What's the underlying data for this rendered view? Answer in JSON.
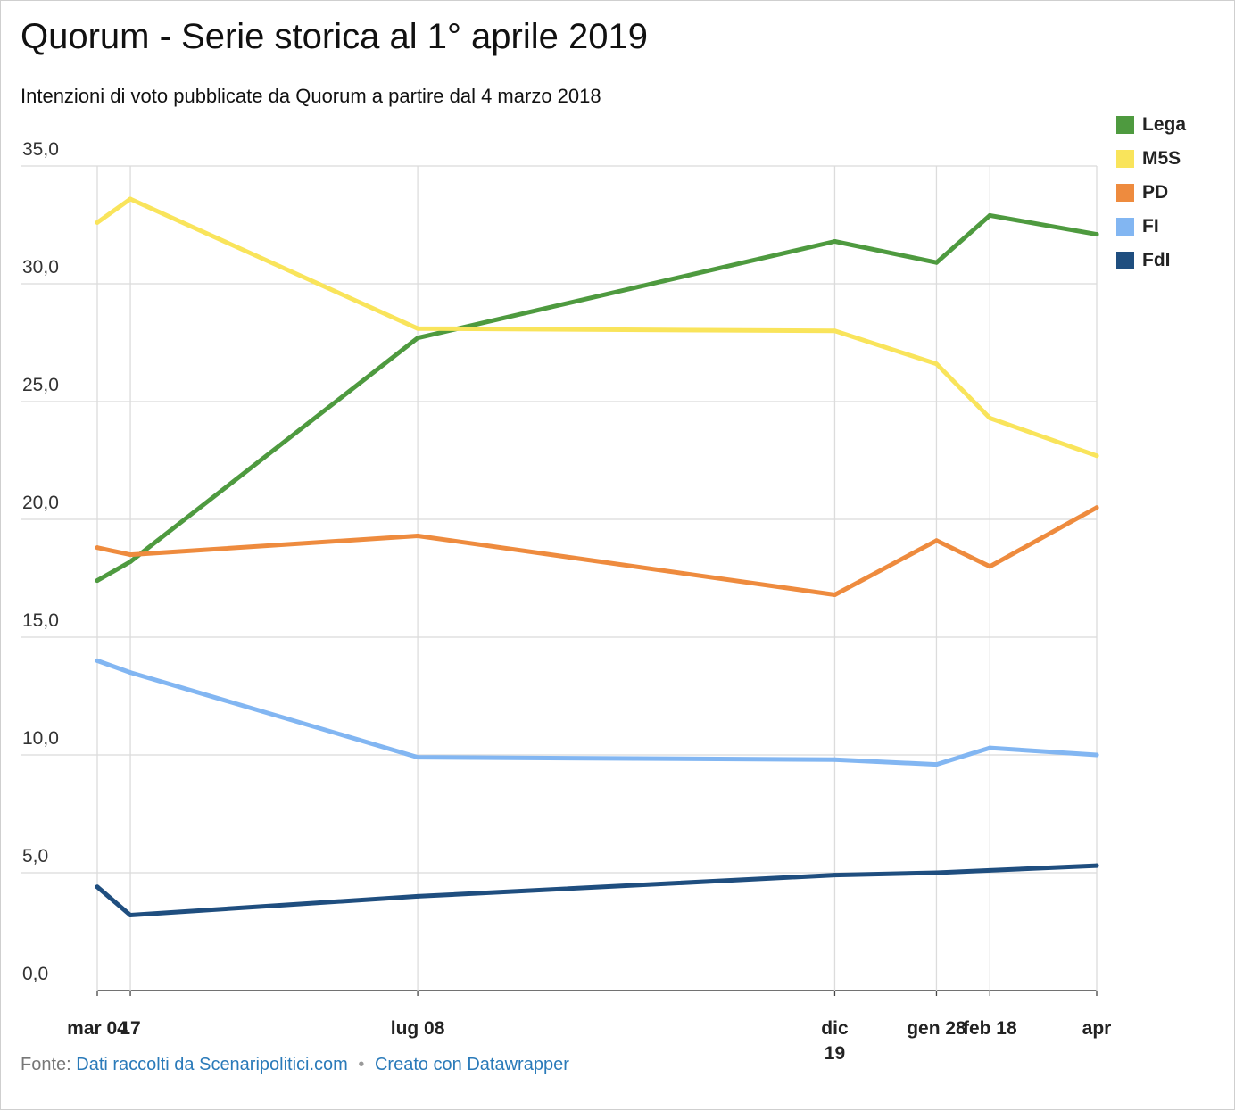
{
  "title": "Quorum - Serie storica al 1° aprile 2019",
  "subtitle": "Intenzioni di voto pubblicate da Quorum a partire dal 4 marzo 2018",
  "footer": {
    "prefix": "Fonte:",
    "source_link": "Dati raccolti da Scenaripolitici.com",
    "separator": "•",
    "tool_link": "Creato con Datawrapper"
  },
  "chart_data": {
    "type": "line",
    "title": "Quorum - Serie storica al 1° aprile 2019",
    "subtitle": "Intenzioni di voto pubblicate da Quorum a partire dal 4 marzo 2018",
    "xlabel": "",
    "ylabel": "",
    "ylim": [
      0,
      35
    ],
    "y_ticks": [
      "0,0",
      "5,0",
      "10,0",
      "15,0",
      "20,0",
      "25,0",
      "30,0",
      "35,0"
    ],
    "x": [
      "2018-03-04",
      "2018-03-17",
      "2018-07-08",
      "2018-12-19",
      "2019-01-28",
      "2019-02-18",
      "2019-04-01"
    ],
    "x_tick_labels": [
      {
        "date": "2018-03-04",
        "lines": [
          "mar 04"
        ]
      },
      {
        "date": "2018-03-17",
        "lines": [
          "17"
        ]
      },
      {
        "date": "2018-07-08",
        "lines": [
          "lug 08"
        ]
      },
      {
        "date": "2018-12-19",
        "lines": [
          "dic",
          "19"
        ]
      },
      {
        "date": "2019-01-28",
        "lines": [
          "gen 28"
        ]
      },
      {
        "date": "2019-02-18",
        "lines": [
          "feb 18"
        ]
      },
      {
        "date": "2019-04-01",
        "lines": [
          "apr"
        ]
      }
    ],
    "grid": true,
    "legend_position": "top-right",
    "series": [
      {
        "name": "Lega",
        "color": "#4e9a3f",
        "values": [
          17.4,
          18.2,
          27.7,
          31.8,
          30.9,
          32.9,
          32.1
        ]
      },
      {
        "name": "M5S",
        "color": "#f9e45b",
        "values": [
          32.6,
          33.6,
          28.1,
          28.0,
          26.6,
          24.3,
          22.7
        ]
      },
      {
        "name": "PD",
        "color": "#ee8b3e",
        "values": [
          18.8,
          18.5,
          19.3,
          16.8,
          19.1,
          18.0,
          20.5
        ]
      },
      {
        "name": "FI",
        "color": "#82b6f2",
        "values": [
          14.0,
          13.5,
          9.9,
          9.8,
          9.6,
          10.3,
          10.0
        ]
      },
      {
        "name": "FdI",
        "color": "#1f4e7f",
        "values": [
          4.4,
          3.2,
          4.0,
          4.9,
          5.0,
          5.1,
          5.3
        ]
      }
    ]
  }
}
